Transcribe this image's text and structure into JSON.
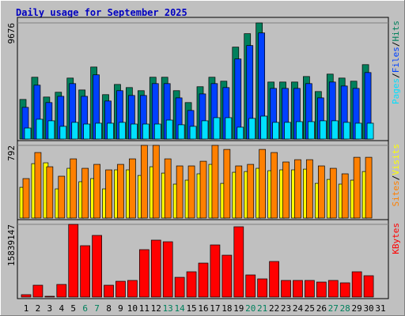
{
  "chart_data": [
    {
      "type": "bar",
      "title": "Daily usage for September 2025",
      "legend_separator": "/",
      "ylim": [
        0,
        9676
      ],
      "yticks": [
        9676
      ],
      "series": [
        {
          "name": "Hits",
          "color": "#00805c",
          "values": [
            3300,
            5150,
            3500,
            3900,
            5080,
            4090,
            6000,
            3700,
            4550,
            4290,
            4030,
            5150,
            5150,
            4030,
            3040,
            4360,
            5150,
            4820,
            7660,
            8780,
            9676,
            4750,
            4750,
            4750,
            5210,
            3960,
            5410,
            5080,
            4820,
            6200,
            null
          ]
        },
        {
          "name": "Files",
          "color": "#0040ff",
          "values": [
            2640,
            4490,
            3040,
            3560,
            4620,
            3560,
            5350,
            3170,
            4030,
            3630,
            3630,
            4620,
            4620,
            3430,
            2380,
            3760,
            4620,
            4290,
            6670,
            7790,
            8840,
            4220,
            4220,
            4220,
            4620,
            3430,
            4750,
            4420,
            4220,
            5540,
            null
          ]
        },
        {
          "name": "Pages",
          "color": "#00e0ff",
          "values": [
            920,
            1650,
            1520,
            1060,
            1390,
            1250,
            1320,
            1320,
            1390,
            1250,
            1250,
            1250,
            1580,
            1190,
            1060,
            1520,
            1780,
            1780,
            990,
            1720,
            1910,
            1390,
            1390,
            1450,
            1450,
            1520,
            1520,
            1390,
            1320,
            1320,
            null
          ]
        }
      ]
    },
    {
      "type": "bar",
      "legend_separator": "/",
      "ylim": [
        0,
        792
      ],
      "yticks": [
        792
      ],
      "series": [
        {
          "name": "Visits",
          "color": "#ffff00",
          "values": [
            335,
            593,
            602,
            318,
            542,
            396,
            430,
            318,
            525,
            525,
            464,
            559,
            490,
            370,
            413,
            482,
            585,
            378,
            499,
            507,
            542,
            516,
            525,
            525,
            533,
            378,
            421,
            370,
            413,
            507,
            null
          ]
        },
        {
          "name": "Sites",
          "color": "#ff8000",
          "values": [
            430,
            714,
            559,
            456,
            645,
            542,
            585,
            525,
            585,
            645,
            792,
            792,
            645,
            568,
            568,
            619,
            792,
            748,
            568,
            585,
            748,
            714,
            611,
            636,
            636,
            568,
            542,
            482,
            662,
            662,
            null
          ]
        }
      ]
    },
    {
      "type": "bar",
      "ylim": [
        0,
        15839147
      ],
      "yticks": [
        15839147
      ],
      "series": [
        {
          "name": "KBytes",
          "color": "#ff0000",
          "values": [
            520000,
            2580000,
            170000,
            2750000,
            15839147,
            11190000,
            13430000,
            2580000,
            3440000,
            3620000,
            10330000,
            12400000,
            12050000,
            4300000,
            5510000,
            7400000,
            11360000,
            9120000,
            15320000,
            4820000,
            3960000,
            7750000,
            3620000,
            3620000,
            3620000,
            3270000,
            3620000,
            3100000,
            5510000,
            4650000,
            null
          ]
        }
      ],
      "categories": [
        "1",
        "2",
        "3",
        "4",
        "5",
        "6",
        "7",
        "8",
        "9",
        "10",
        "11",
        "12",
        "13",
        "14",
        "15",
        "16",
        "17",
        "18",
        "19",
        "20",
        "21",
        "22",
        "23",
        "24",
        "25",
        "26",
        "27",
        "28",
        "29",
        "30",
        "31"
      ],
      "category_label_colors": [
        "#000000",
        "#000000",
        "#000000",
        "#000000",
        "#000000",
        "#00805c",
        "#00805c",
        "#000000",
        "#000000",
        "#000000",
        "#000000",
        "#000000",
        "#00805c",
        "#00805c",
        "#000000",
        "#000000",
        "#000000",
        "#000000",
        "#000000",
        "#00805c",
        "#00805c",
        "#000000",
        "#000000",
        "#000000",
        "#000000",
        "#000000",
        "#00805c",
        "#00805c",
        "#000000",
        "#000000",
        "#000000"
      ]
    }
  ]
}
